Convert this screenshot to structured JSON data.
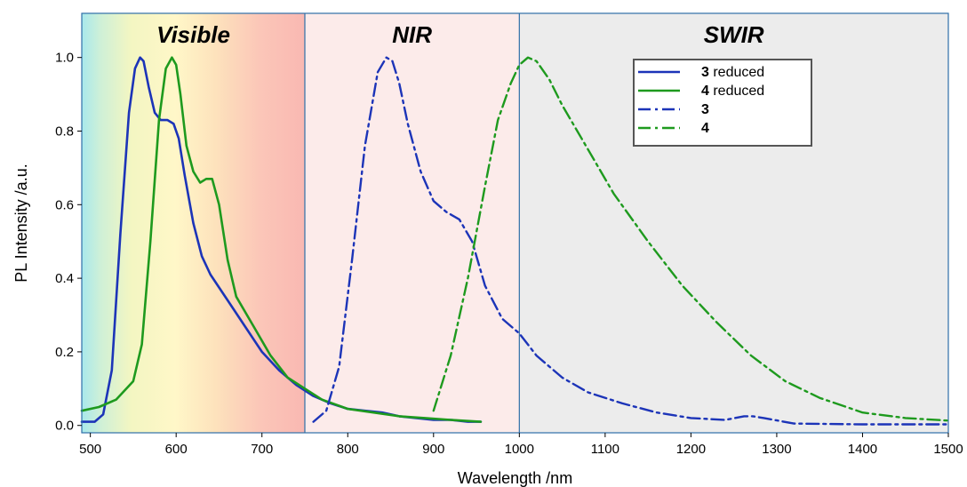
{
  "chart_data": {
    "type": "line",
    "xlabel": "Wavelength /nm",
    "ylabel": "PL Intensity /a.u.",
    "xlim": [
      490,
      1500
    ],
    "ylim": [
      -0.02,
      1.12
    ],
    "xticks": [
      500,
      600,
      700,
      800,
      900,
      1000,
      1100,
      1200,
      1300,
      1400,
      1500
    ],
    "yticks": [
      0.0,
      0.2,
      0.4,
      0.6,
      0.8,
      1.0
    ],
    "grid": false,
    "legend_position": "top-right",
    "regions": [
      {
        "label": "Visible",
        "from": 490,
        "to": 750
      },
      {
        "label": "NIR",
        "from": 750,
        "to": 1000,
        "color": "#fcebea"
      },
      {
        "label": "SWIR",
        "from": 1000,
        "to": 1500,
        "color": "#ececec"
      }
    ],
    "series": [
      {
        "name": "3 reduced",
        "label_num": "3",
        "label_suffix": " reduced",
        "color": "#1c34b8",
        "dash": "solid",
        "x": [
          490,
          505,
          515,
          525,
          535,
          545,
          552,
          558,
          562,
          568,
          575,
          582,
          590,
          597,
          603,
          610,
          620,
          630,
          640,
          660,
          680,
          700,
          720,
          740,
          760,
          780,
          800,
          820,
          840,
          860,
          880,
          900,
          920,
          940,
          955
        ],
        "y": [
          0.01,
          0.01,
          0.03,
          0.15,
          0.52,
          0.85,
          0.97,
          1.0,
          0.99,
          0.92,
          0.85,
          0.83,
          0.83,
          0.82,
          0.78,
          0.68,
          0.55,
          0.46,
          0.41,
          0.34,
          0.27,
          0.2,
          0.15,
          0.11,
          0.08,
          0.06,
          0.045,
          0.04,
          0.035,
          0.025,
          0.02,
          0.015,
          0.015,
          0.01,
          0.01
        ]
      },
      {
        "name": "4 reduced",
        "label_num": "4",
        "label_suffix": " reduced",
        "color": "#1e9a1e",
        "dash": "solid",
        "x": [
          490,
          510,
          530,
          550,
          560,
          570,
          580,
          588,
          595,
          600,
          605,
          612,
          620,
          628,
          635,
          642,
          650,
          660,
          670,
          690,
          710,
          730,
          750,
          770,
          800,
          830,
          860,
          890,
          920,
          955
        ],
        "y": [
          0.04,
          0.05,
          0.07,
          0.12,
          0.22,
          0.5,
          0.83,
          0.97,
          1.0,
          0.98,
          0.9,
          0.76,
          0.69,
          0.66,
          0.67,
          0.67,
          0.6,
          0.45,
          0.35,
          0.27,
          0.19,
          0.13,
          0.1,
          0.07,
          0.045,
          0.035,
          0.025,
          0.02,
          0.015,
          0.01
        ]
      },
      {
        "name": "3",
        "label_num": "3",
        "label_suffix": "",
        "color": "#1c34b8",
        "dash": "dashdot",
        "x": [
          760,
          775,
          790,
          805,
          820,
          835,
          845,
          852,
          860,
          870,
          885,
          900,
          915,
          930,
          945,
          960,
          980,
          1000,
          1020,
          1050,
          1080,
          1120,
          1160,
          1200,
          1240,
          1262,
          1272,
          1285,
          1320,
          1400,
          1500
        ],
        "y": [
          0.01,
          0.04,
          0.16,
          0.45,
          0.76,
          0.96,
          1.0,
          0.99,
          0.93,
          0.82,
          0.69,
          0.61,
          0.58,
          0.56,
          0.5,
          0.38,
          0.29,
          0.25,
          0.19,
          0.13,
          0.09,
          0.06,
          0.035,
          0.02,
          0.015,
          0.025,
          0.025,
          0.02,
          0.005,
          0.003,
          0.003
        ]
      },
      {
        "name": "4",
        "label_num": "4",
        "label_suffix": "",
        "color": "#1e9a1e",
        "dash": "dashdot",
        "x": [
          900,
          920,
          940,
          960,
          975,
          990,
          1000,
          1010,
          1020,
          1035,
          1050,
          1080,
          1110,
          1150,
          1190,
          1230,
          1270,
          1310,
          1350,
          1400,
          1450,
          1500
        ],
        "y": [
          0.04,
          0.19,
          0.4,
          0.65,
          0.83,
          0.93,
          0.98,
          1.0,
          0.99,
          0.94,
          0.87,
          0.75,
          0.63,
          0.5,
          0.38,
          0.28,
          0.19,
          0.12,
          0.075,
          0.035,
          0.02,
          0.013
        ]
      }
    ]
  }
}
